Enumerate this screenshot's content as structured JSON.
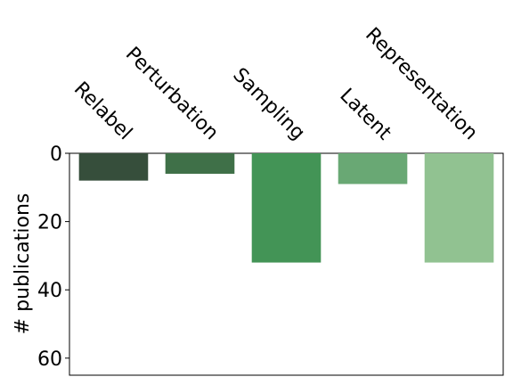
{
  "chart_data": {
    "type": "bar",
    "categories": [
      "Relabel",
      "Perturbation",
      "Sampling",
      "Latent",
      "Representation"
    ],
    "values": [
      8,
      6,
      32,
      9,
      32
    ],
    "colors": [
      "#364e3b",
      "#3f7048",
      "#439456",
      "#69a874",
      "#91c291"
    ],
    "title": "",
    "xlabel": "",
    "ylabel": "# publications",
    "ylim": [
      0,
      65
    ],
    "yticks": [
      0,
      20,
      40,
      60
    ],
    "y_inverted": true,
    "category_labels_position": "top",
    "grid": false
  }
}
